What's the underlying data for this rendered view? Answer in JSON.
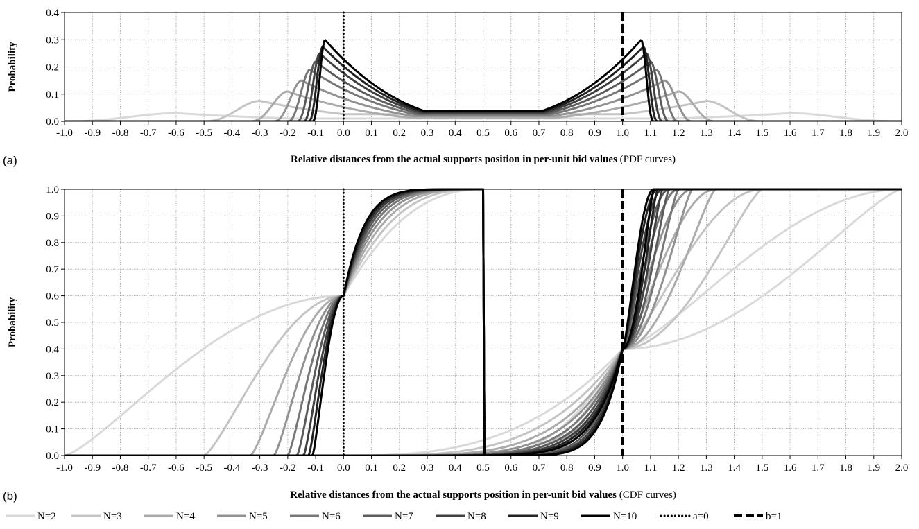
{
  "chart_data": [
    {
      "panel": "(a)",
      "type": "line",
      "xlabel_bold": "Relative distances from the actual supports position in per-unit bid values",
      "xlabel_suffix": " (PDF curves)",
      "ylabel": "Probability",
      "xlim": [
        -1.0,
        2.0
      ],
      "ylim": [
        0.0,
        0.4
      ],
      "xticks": [
        "-1.0",
        "-0.9",
        "-0.8",
        "-0.7",
        "-0.6",
        "-0.5",
        "-0.4",
        "-0.3",
        "-0.2",
        "-0.1",
        "0.0",
        "0.1",
        "0.2",
        "0.3",
        "0.4",
        "0.5",
        "0.6",
        "0.7",
        "0.8",
        "0.9",
        "1.0",
        "1.1",
        "1.2",
        "1.3",
        "1.4",
        "1.5",
        "1.6",
        "1.7",
        "1.8",
        "1.9",
        "2.0"
      ],
      "yticks": [
        "0.0",
        "0.1",
        "0.2",
        "0.3",
        "0.4"
      ],
      "grid": true,
      "curve_kind": "pdf",
      "series_peaks": [
        {
          "name": "N=2",
          "peak": 0.03,
          "support": 1.0
        },
        {
          "name": "N=3",
          "peak": 0.075,
          "support": 0.5
        },
        {
          "name": "N=4",
          "peak": 0.11,
          "support": 0.333
        },
        {
          "name": "N=5",
          "peak": 0.15,
          "support": 0.25
        },
        {
          "name": "N=6",
          "peak": 0.19,
          "support": 0.2
        },
        {
          "name": "N=7",
          "peak": 0.22,
          "support": 0.167
        },
        {
          "name": "N=8",
          "peak": 0.25,
          "support": 0.143
        },
        {
          "name": "N=9",
          "peak": 0.275,
          "support": 0.125
        },
        {
          "name": "N=10",
          "peak": 0.3,
          "support": 0.111
        }
      ],
      "vlines": [
        {
          "name": "a=0",
          "x": 0.0
        },
        {
          "name": "b=1",
          "x": 1.0
        }
      ]
    },
    {
      "panel": "(b)",
      "type": "line",
      "xlabel_bold": "Relative distances from the actual supports position in per-unit bid values",
      "xlabel_suffix": " (CDF curves)",
      "ylabel": "Probability",
      "xlim": [
        -1.0,
        2.0
      ],
      "ylim": [
        0.0,
        1.0
      ],
      "xticks": [
        "-1.0",
        "-0.9",
        "-0.8",
        "-0.7",
        "-0.6",
        "-0.5",
        "-0.4",
        "-0.3",
        "-0.2",
        "-0.1",
        "0.0",
        "0.1",
        "0.2",
        "0.3",
        "0.4",
        "0.5",
        "0.6",
        "0.7",
        "0.8",
        "0.9",
        "1.0",
        "1.1",
        "1.2",
        "1.3",
        "1.4",
        "1.5",
        "1.6",
        "1.7",
        "1.8",
        "1.9",
        "2.0"
      ],
      "yticks": [
        "0.0",
        "0.1",
        "0.2",
        "0.3",
        "0.4",
        "0.5",
        "0.6",
        "0.7",
        "0.8",
        "0.9",
        "1.0"
      ],
      "grid": true,
      "curve_kind": "cdf",
      "vlines": [
        {
          "name": "a=0",
          "x": 0.0
        },
        {
          "name": "b=1",
          "x": 1.0
        }
      ]
    }
  ],
  "legend": {
    "placement": "bottom",
    "entries": [
      {
        "label": "N=2",
        "n": 2,
        "color": "#d9d9d9",
        "style": "solid"
      },
      {
        "label": "N=3",
        "n": 3,
        "color": "#c4c4c4",
        "style": "solid"
      },
      {
        "label": "N=4",
        "n": 4,
        "color": "#ababab",
        "style": "solid"
      },
      {
        "label": "N=5",
        "n": 5,
        "color": "#929292",
        "style": "solid"
      },
      {
        "label": "N=6",
        "n": 6,
        "color": "#777777",
        "style": "solid"
      },
      {
        "label": "N=7",
        "n": 7,
        "color": "#5c5c5c",
        "style": "solid"
      },
      {
        "label": "N=8",
        "n": 8,
        "color": "#404040",
        "style": "solid"
      },
      {
        "label": "N=9",
        "n": 9,
        "color": "#222222",
        "style": "solid"
      },
      {
        "label": "N=10",
        "n": 10,
        "color": "#000000",
        "style": "solid"
      },
      {
        "label": "a=0",
        "color": "#000000",
        "style": "dotted"
      },
      {
        "label": "b=1",
        "color": "#000000",
        "style": "dashed"
      }
    ]
  }
}
